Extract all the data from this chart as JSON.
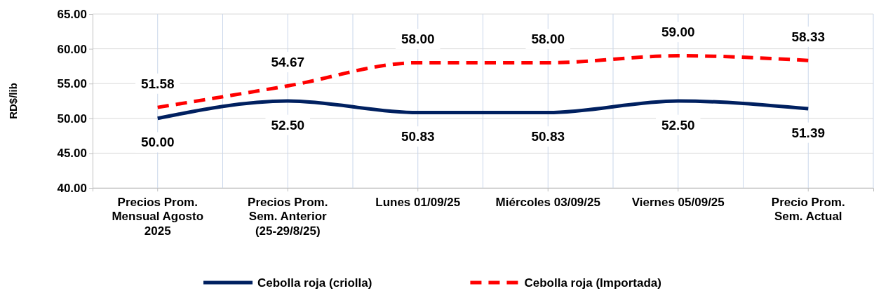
{
  "chart_data": {
    "type": "line",
    "ylabel": "RD$/lib",
    "categories": [
      "Precios Prom. Mensual Agosto 2025",
      "Precios Prom. Sem. Anterior (25-29/8/25)",
      "Lunes  01/09/25",
      "Miércoles 03/09/25",
      "Viernes 05/09/25",
      "Precio Prom. Sem. Actual"
    ],
    "series": [
      {
        "name": "Cebolla roja (criolla)",
        "color": "#002060",
        "line_style": "solid",
        "values": [
          50.0,
          52.5,
          50.83,
          50.83,
          52.5,
          51.39
        ],
        "value_labels": [
          "50.00",
          "52.50",
          "50.83",
          "50.83",
          "52.50",
          "51.39"
        ]
      },
      {
        "name": "Cebolla roja (Importada)",
        "color": "#ff0000",
        "line_style": "dashed",
        "values": [
          51.58,
          54.67,
          58.0,
          58.0,
          59.0,
          58.33
        ],
        "value_labels": [
          "51.58",
          "54.67",
          "58.00",
          "58.00",
          "59.00",
          "58.33"
        ]
      }
    ],
    "ylim": [
      40,
      65
    ],
    "yticks": [
      {
        "value": 40,
        "label": "40.00"
      },
      {
        "value": 45,
        "label": "45.00"
      },
      {
        "value": 50,
        "label": "50.00"
      },
      {
        "value": 55,
        "label": "55.00"
      },
      {
        "value": 60,
        "label": "60.00"
      },
      {
        "value": 65,
        "label": "65.00"
      }
    ],
    "grid": true,
    "legend": "bottom",
    "marker": "none"
  }
}
